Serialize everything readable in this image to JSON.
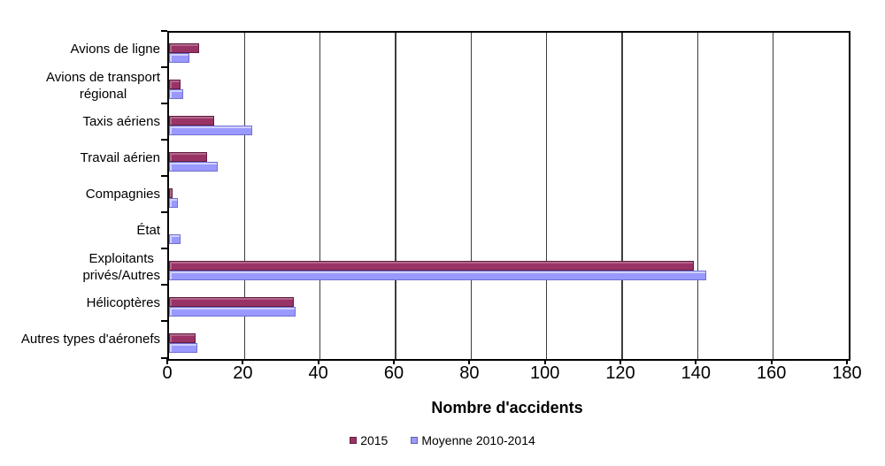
{
  "chart_data": {
    "type": "bar",
    "orientation": "horizontal",
    "xlabel": "Nombre d'accidents",
    "xlim": [
      0,
      180
    ],
    "xticks": [
      0,
      20,
      40,
      60,
      80,
      100,
      120,
      140,
      160,
      180
    ],
    "grid": true,
    "legend_position": "bottom",
    "categories": [
      "Avions de ligne",
      "Avions de transport\nrégional",
      "Taxis aériens",
      "Travail aérien",
      "Compagnies",
      "État",
      "Exploitants\nprivés/Autres",
      "Hélicoptères",
      "Autres types d'aéronefs"
    ],
    "series": [
      {
        "name": "2015",
        "color": "#993366",
        "values": [
          8,
          3,
          12,
          10,
          1,
          0,
          139,
          33,
          7
        ]
      },
      {
        "name": "Moyenne 2010-2014",
        "color": "#9999FF",
        "values": [
          5.4,
          3.8,
          22,
          12.8,
          2.4,
          3,
          142.2,
          33.4,
          7.4
        ]
      }
    ]
  },
  "colors": {
    "frame": "#000000",
    "gridline": "#3d3d3d",
    "background": "#ffffff"
  }
}
